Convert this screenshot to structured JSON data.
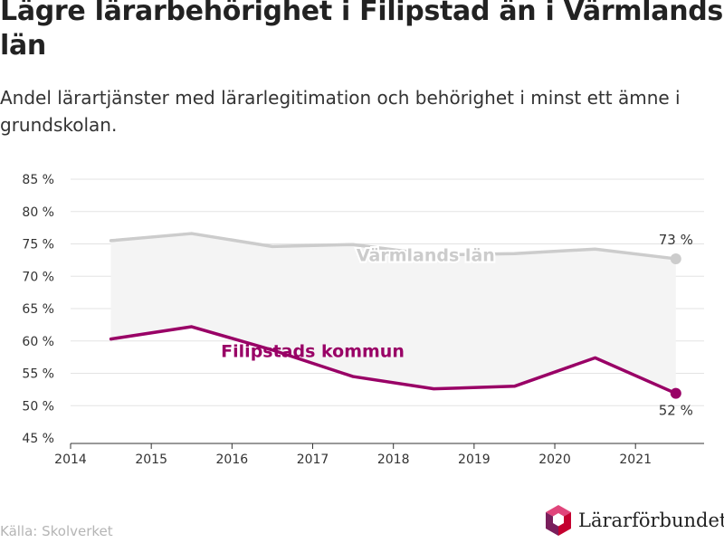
{
  "header": {
    "title": "Lägre lärarbehörighet i Filipstad än i Värmlands län",
    "subtitle": "Andel lärartjänster med lärarlegitimation och behörighet i minst ett ämne i grundskolan."
  },
  "footer": {
    "source": "Källa: Skolverket",
    "logo_text": "Lärarförbundet",
    "logo_icon": "hexagon-logo-icon"
  },
  "colors": {
    "varmland": "#cccccc",
    "filipstad": "#990066",
    "band": "#f4f4f4",
    "grid": "#e3e3e3"
  },
  "chart_data": {
    "type": "line",
    "x": [
      2014.5,
      2015.5,
      2016.5,
      2017.5,
      2018.5,
      2019.5,
      2020.5,
      2021.5
    ],
    "xlim": [
      2014,
      2021.85
    ],
    "xticks": [
      2014,
      2015,
      2016,
      2017,
      2018,
      2019,
      2020,
      2021
    ],
    "ylim": [
      45,
      85
    ],
    "yticks": [
      45,
      50,
      55,
      60,
      65,
      70,
      75,
      80,
      85
    ],
    "ytick_suffix": " %",
    "grid": true,
    "series": [
      {
        "name": "Värmlands län",
        "values": [
          75.5,
          76.6,
          74.6,
          74.9,
          73.3,
          73.5,
          74.2,
          72.7
        ],
        "end_label": "73 %"
      },
      {
        "name": "Filipstads kommun",
        "values": [
          60.3,
          62.2,
          58.6,
          54.5,
          52.6,
          53.0,
          57.4,
          51.9
        ],
        "end_label": "52 %"
      }
    ]
  }
}
